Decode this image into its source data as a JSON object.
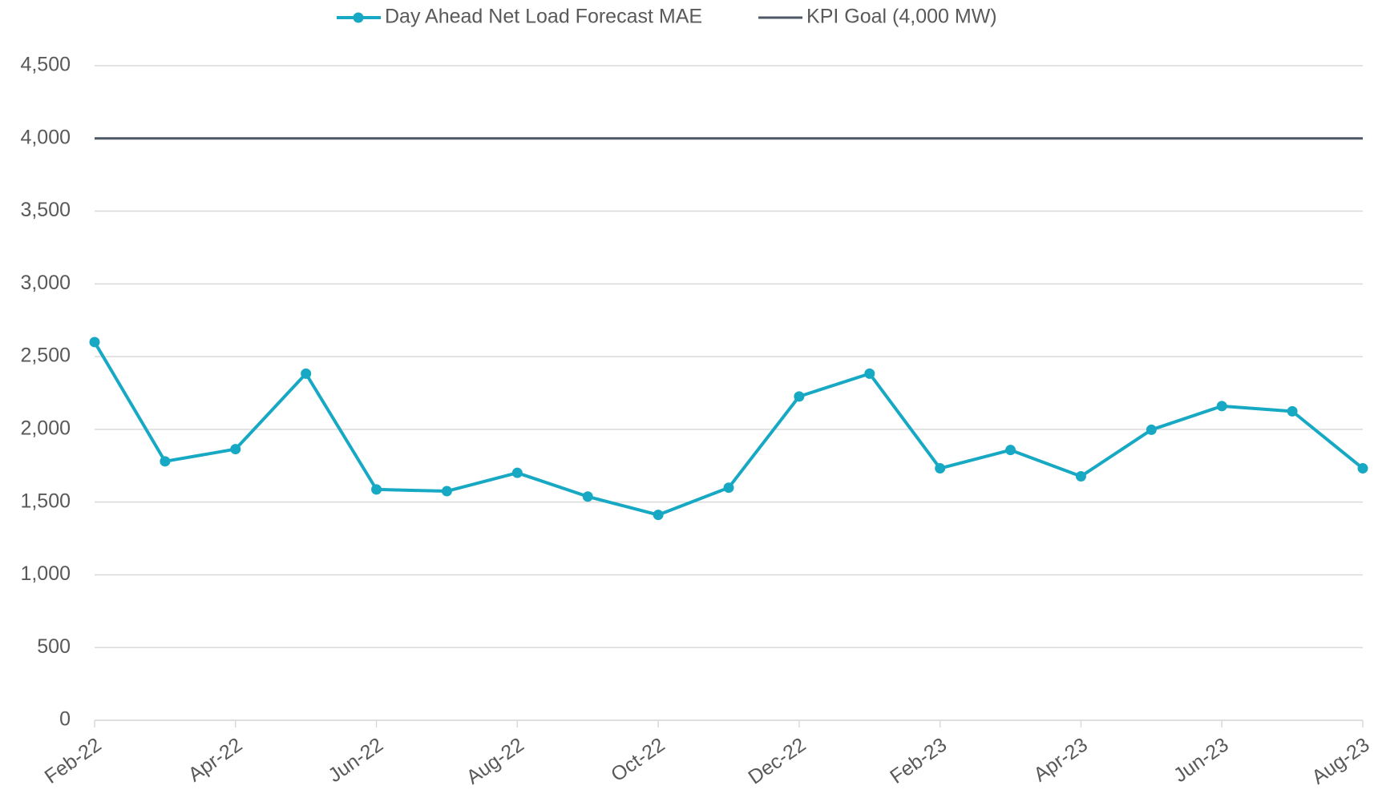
{
  "chart_data": {
    "type": "line",
    "categories": [
      "Feb-22",
      null,
      "Apr-22",
      null,
      "Jun-22",
      null,
      "Aug-22",
      null,
      "Oct-22",
      null,
      "Dec-22",
      null,
      "Feb-23",
      null,
      "Apr-23",
      null,
      "Jun-23",
      null,
      "Aug-23"
    ],
    "series": [
      {
        "name": "Day Ahead Net Load Forecast MAE",
        "color": "#17a9c4",
        "marker": true,
        "values": [
          2600,
          1780,
          1864,
          2383,
          1587,
          1575,
          1701,
          1538,
          1412,
          1599,
          2226,
          2383,
          1732,
          1858,
          1677,
          1997,
          2160,
          2124,
          1732
        ]
      },
      {
        "name": "KPI Goal (4,000 MW)",
        "color": "#4d5766",
        "marker": false,
        "values": [
          4000,
          4000,
          4000,
          4000,
          4000,
          4000,
          4000,
          4000,
          4000,
          4000,
          4000,
          4000,
          4000,
          4000,
          4000,
          4000,
          4000,
          4000,
          4000
        ]
      }
    ],
    "ylim": [
      0,
      4500
    ],
    "yticks": [
      0,
      500,
      {
        "value": 1000,
        "label": "1,000"
      },
      {
        "value": 1500,
        "label": "1,500"
      },
      {
        "value": 2000,
        "label": "2,000"
      },
      {
        "value": 2500,
        "label": "2,500"
      },
      {
        "value": 3000,
        "label": "3,000"
      },
      {
        "value": 3500,
        "label": "3,500"
      },
      {
        "value": 4000,
        "label": "4,000"
      },
      {
        "value": 4500,
        "label": "4,500"
      }
    ],
    "grid": true,
    "legend": "top"
  }
}
